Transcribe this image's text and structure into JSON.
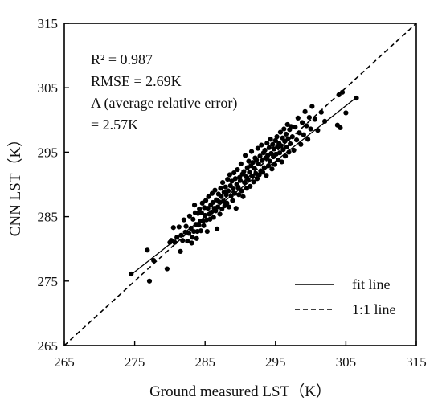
{
  "chart_data": {
    "type": "scatter",
    "xlabel": "Ground measured  LST（K）",
    "ylabel": "CNN LST（K）",
    "xlim": [
      265,
      315
    ],
    "ylim": [
      265,
      315
    ],
    "xticks": [
      "265",
      "275",
      "285",
      "295",
      "305",
      "315"
    ],
    "yticks": [
      "265",
      "275",
      "285",
      "295",
      "305",
      "315"
    ],
    "grid": false,
    "annotations": [
      "R² = 0.987",
      "RMSE = 2.69K",
      "A (average relative error)",
      "= 2.57K"
    ],
    "legend": {
      "position": "bottom-right",
      "entries": [
        {
          "label": "fit line",
          "style": "solid"
        },
        {
          "label": "1:1 line",
          "style": "dashed"
        }
      ]
    },
    "fit_line": {
      "x": [
        274.5,
        306.5
      ],
      "y": [
        276.0,
        303.5
      ]
    },
    "one_to_one_line": {
      "x": [
        265,
        315
      ],
      "y": [
        265,
        315
      ]
    },
    "point_color": "#000000",
    "points": [
      [
        274.5,
        276.1
      ],
      [
        276.8,
        279.8
      ],
      [
        277.1,
        275.0
      ],
      [
        277.7,
        278.2
      ],
      [
        279.6,
        276.9
      ],
      [
        280.0,
        281.0
      ],
      [
        280.2,
        281.3
      ],
      [
        280.5,
        283.3
      ],
      [
        280.7,
        281.0
      ],
      [
        281.0,
        281.8
      ],
      [
        281.3,
        283.4
      ],
      [
        281.5,
        279.6
      ],
      [
        281.6,
        282.1
      ],
      [
        281.8,
        281.3
      ],
      [
        282.0,
        284.5
      ],
      [
        282.2,
        282.6
      ],
      [
        282.3,
        283.5
      ],
      [
        282.5,
        281.2
      ],
      [
        282.7,
        282.4
      ],
      [
        282.8,
        285.1
      ],
      [
        283.0,
        283.2
      ],
      [
        283.1,
        280.9
      ],
      [
        283.2,
        281.8
      ],
      [
        283.3,
        284.6
      ],
      [
        283.4,
        282.7
      ],
      [
        283.5,
        286.8
      ],
      [
        283.6,
        285.6
      ],
      [
        283.7,
        283.8
      ],
      [
        283.8,
        281.6
      ],
      [
        283.9,
        282.7
      ],
      [
        284.0,
        285.5
      ],
      [
        284.1,
        283.7
      ],
      [
        284.2,
        286.2
      ],
      [
        284.3,
        284.3
      ],
      [
        284.4,
        282.8
      ],
      [
        284.5,
        285.6
      ],
      [
        284.6,
        287.1
      ],
      [
        284.7,
        284.3
      ],
      [
        284.8,
        283.6
      ],
      [
        284.9,
        286.4
      ],
      [
        285.0,
        285.2
      ],
      [
        285.1,
        287.5
      ],
      [
        285.2,
        284.5
      ],
      [
        285.3,
        282.7
      ],
      [
        285.4,
        286.3
      ],
      [
        285.5,
        288.1
      ],
      [
        285.6,
        285.4
      ],
      [
        285.7,
        284.6
      ],
      [
        285.8,
        286.8
      ],
      [
        285.9,
        285.7
      ],
      [
        286.0,
        288.6
      ],
      [
        286.1,
        287.2
      ],
      [
        286.2,
        284.9
      ],
      [
        286.3,
        286.3
      ],
      [
        286.4,
        289.1
      ],
      [
        286.5,
        285.9
      ],
      [
        286.6,
        287.6
      ],
      [
        286.7,
        283.1
      ],
      [
        286.8,
        286.5
      ],
      [
        286.9,
        288.5
      ],
      [
        287.0,
        287.3
      ],
      [
        287.1,
        285.4
      ],
      [
        287.2,
        289.4
      ],
      [
        287.3,
        288.1
      ],
      [
        287.4,
        286.2
      ],
      [
        287.5,
        290.3
      ],
      [
        287.6,
        287.4
      ],
      [
        287.7,
        288.8
      ],
      [
        287.8,
        286.7
      ],
      [
        287.9,
        289.6
      ],
      [
        288.0,
        288.4
      ],
      [
        288.1,
        287.1
      ],
      [
        288.2,
        290.8
      ],
      [
        288.3,
        289.0
      ],
      [
        288.4,
        286.5
      ],
      [
        288.5,
        291.5
      ],
      [
        288.6,
        289.8
      ],
      [
        288.7,
        288.2
      ],
      [
        288.8,
        290.5
      ],
      [
        288.9,
        287.5
      ],
      [
        289.0,
        289.3
      ],
      [
        289.1,
        291.8
      ],
      [
        289.2,
        288.6
      ],
      [
        289.3,
        290.9
      ],
      [
        289.4,
        286.3
      ],
      [
        289.5,
        290.0
      ],
      [
        289.6,
        292.3
      ],
      [
        289.7,
        289.5
      ],
      [
        289.8,
        288.4
      ],
      [
        289.9,
        291.1
      ],
      [
        290.0,
        290.6
      ],
      [
        290.1,
        293.2
      ],
      [
        290.2,
        289.0
      ],
      [
        290.3,
        291.6
      ],
      [
        290.4,
        288.1
      ],
      [
        290.5,
        292.0
      ],
      [
        290.6,
        290.3
      ],
      [
        290.7,
        294.5
      ],
      [
        290.8,
        291.2
      ],
      [
        290.9,
        289.4
      ],
      [
        291.0,
        292.6
      ],
      [
        291.1,
        290.8
      ],
      [
        291.2,
        293.6
      ],
      [
        291.3,
        291.9
      ],
      [
        291.4,
        289.7
      ],
      [
        291.5,
        292.9
      ],
      [
        291.6,
        295.1
      ],
      [
        291.7,
        291.3
      ],
      [
        291.8,
        293.4
      ],
      [
        291.9,
        290.4
      ],
      [
        292.0,
        292.5
      ],
      [
        292.1,
        294.1
      ],
      [
        292.2,
        291.7
      ],
      [
        292.3,
        293.8
      ],
      [
        292.4,
        290.9
      ],
      [
        292.5,
        295.6
      ],
      [
        292.6,
        293.2
      ],
      [
        292.7,
        291.5
      ],
      [
        292.8,
        294.4
      ],
      [
        292.9,
        292.1
      ],
      [
        293.0,
        296.1
      ],
      [
        293.1,
        293.7
      ],
      [
        293.2,
        291.9
      ],
      [
        293.3,
        294.9
      ],
      [
        293.4,
        292.6
      ],
      [
        293.5,
        295.3
      ],
      [
        293.6,
        294.1
      ],
      [
        293.7,
        291.4
      ],
      [
        293.8,
        296.4
      ],
      [
        293.9,
        294.5
      ],
      [
        294.0,
        292.9
      ],
      [
        294.1,
        295.7
      ],
      [
        294.2,
        293.6
      ],
      [
        294.3,
        297.0
      ],
      [
        294.4,
        294.8
      ],
      [
        294.5,
        292.4
      ],
      [
        294.6,
        296.2
      ],
      [
        294.7,
        294.3
      ],
      [
        294.8,
        295.5
      ],
      [
        294.9,
        293.1
      ],
      [
        295.0,
        296.8
      ],
      [
        295.1,
        294.7
      ],
      [
        295.2,
        297.4
      ],
      [
        295.3,
        295.9
      ],
      [
        295.4,
        293.8
      ],
      [
        295.5,
        296.4
      ],
      [
        295.6,
        294.9
      ],
      [
        295.7,
        298.1
      ],
      [
        295.8,
        296.0
      ],
      [
        295.9,
        293.5
      ],
      [
        296.0,
        297.2
      ],
      [
        296.1,
        295.4
      ],
      [
        296.2,
        298.6
      ],
      [
        296.3,
        296.7
      ],
      [
        296.4,
        294.4
      ],
      [
        296.5,
        297.8
      ],
      [
        296.6,
        295.8
      ],
      [
        296.7,
        299.3
      ],
      [
        296.8,
        297.1
      ],
      [
        296.9,
        295.0
      ],
      [
        297.0,
        298.5
      ],
      [
        297.1,
        296.3
      ],
      [
        297.2,
        299.0
      ],
      [
        297.4,
        297.4
      ],
      [
        297.6,
        295.3
      ],
      [
        297.8,
        298.9
      ],
      [
        298.0,
        296.9
      ],
      [
        298.2,
        300.3
      ],
      [
        298.4,
        298.0
      ],
      [
        298.6,
        296.2
      ],
      [
        298.8,
        299.6
      ],
      [
        299.0,
        297.7
      ],
      [
        299.2,
        301.3
      ],
      [
        299.4,
        299.1
      ],
      [
        299.6,
        297.0
      ],
      [
        299.8,
        300.4
      ],
      [
        300.0,
        298.6
      ],
      [
        300.2,
        302.1
      ],
      [
        300.6,
        300.1
      ],
      [
        301.0,
        298.4
      ],
      [
        301.5,
        301.2
      ],
      [
        302.0,
        299.8
      ],
      [
        303.8,
        299.2
      ],
      [
        304.2,
        298.8
      ],
      [
        304.5,
        304.3
      ],
      [
        305.0,
        301.1
      ],
      [
        304.0,
        303.9
      ],
      [
        306.5,
        303.4
      ]
    ]
  }
}
